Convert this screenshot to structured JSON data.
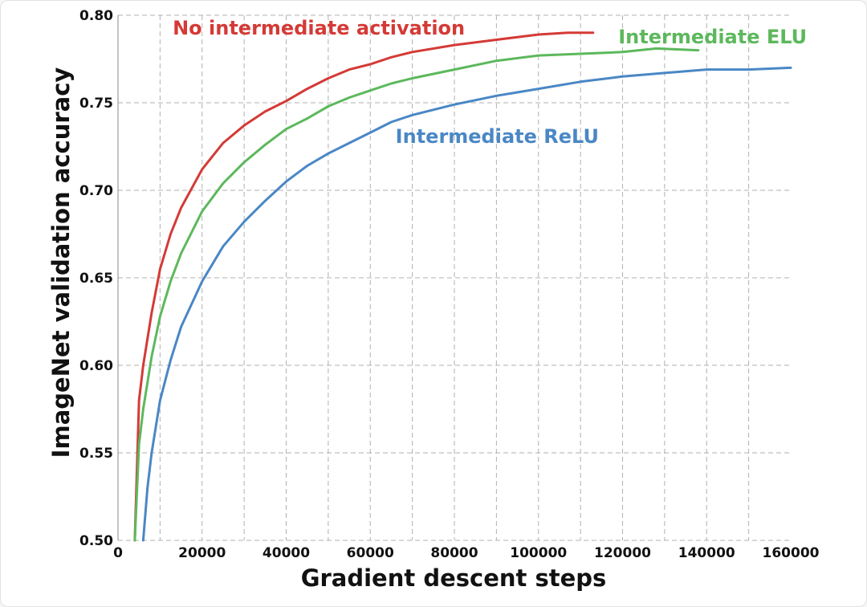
{
  "chart_data": {
    "type": "line",
    "title": "",
    "xlabel": "Gradient descent steps",
    "ylabel": "ImageNet validation accuracy",
    "xlim": [
      0,
      160000
    ],
    "ylim": [
      0.5,
      0.8
    ],
    "xticks": [
      0,
      20000,
      40000,
      60000,
      80000,
      100000,
      120000,
      140000,
      160000
    ],
    "xtick_labels": [
      "0",
      "20000",
      "40000",
      "60000",
      "80000",
      "100000",
      "120000",
      "140000",
      "160000"
    ],
    "yticks": [
      0.5,
      0.55,
      0.6,
      0.65,
      0.7,
      0.75,
      0.8
    ],
    "ytick_labels": [
      "0.50",
      "0.55",
      "0.60",
      "0.65",
      "0.70",
      "0.75",
      "0.80"
    ],
    "grid": true,
    "legend": "inline labels",
    "series": [
      {
        "name": "No intermediate activation",
        "color": "#d43a36",
        "label_anchor": [
          13000,
          0.789
        ],
        "points": [
          [
            4000,
            0.5
          ],
          [
            5000,
            0.58
          ],
          [
            6000,
            0.6
          ],
          [
            8000,
            0.63
          ],
          [
            10000,
            0.655
          ],
          [
            12500,
            0.675
          ],
          [
            15000,
            0.69
          ],
          [
            20000,
            0.712
          ],
          [
            25000,
            0.727
          ],
          [
            30000,
            0.737
          ],
          [
            35000,
            0.745
          ],
          [
            40000,
            0.751
          ],
          [
            45000,
            0.758
          ],
          [
            50000,
            0.764
          ],
          [
            55000,
            0.769
          ],
          [
            60000,
            0.772
          ],
          [
            65000,
            0.776
          ],
          [
            70000,
            0.779
          ],
          [
            80000,
            0.783
          ],
          [
            90000,
            0.786
          ],
          [
            100000,
            0.789
          ],
          [
            107000,
            0.79
          ],
          [
            113000,
            0.79
          ]
        ]
      },
      {
        "name": "Intermediate ELU",
        "color": "#5cb85c",
        "label_anchor": [
          119000,
          0.784
        ],
        "points": [
          [
            4000,
            0.5
          ],
          [
            5000,
            0.555
          ],
          [
            6000,
            0.575
          ],
          [
            8000,
            0.605
          ],
          [
            10000,
            0.628
          ],
          [
            12500,
            0.648
          ],
          [
            15000,
            0.664
          ],
          [
            20000,
            0.688
          ],
          [
            25000,
            0.704
          ],
          [
            30000,
            0.716
          ],
          [
            35000,
            0.726
          ],
          [
            40000,
            0.735
          ],
          [
            45000,
            0.741
          ],
          [
            50000,
            0.748
          ],
          [
            55000,
            0.753
          ],
          [
            60000,
            0.757
          ],
          [
            65000,
            0.761
          ],
          [
            70000,
            0.764
          ],
          [
            80000,
            0.769
          ],
          [
            90000,
            0.774
          ],
          [
            100000,
            0.777
          ],
          [
            110000,
            0.778
          ],
          [
            120000,
            0.779
          ],
          [
            128000,
            0.781
          ],
          [
            138000,
            0.78
          ]
        ]
      },
      {
        "name": "Intermediate ReLU",
        "color": "#4a87c5",
        "label_anchor": [
          66000,
          0.727
        ],
        "points": [
          [
            6000,
            0.5
          ],
          [
            7000,
            0.53
          ],
          [
            8000,
            0.55
          ],
          [
            10000,
            0.58
          ],
          [
            12500,
            0.603
          ],
          [
            15000,
            0.622
          ],
          [
            20000,
            0.648
          ],
          [
            25000,
            0.668
          ],
          [
            30000,
            0.682
          ],
          [
            35000,
            0.694
          ],
          [
            40000,
            0.705
          ],
          [
            45000,
            0.714
          ],
          [
            50000,
            0.721
          ],
          [
            55000,
            0.727
          ],
          [
            60000,
            0.733
          ],
          [
            65000,
            0.739
          ],
          [
            70000,
            0.743
          ],
          [
            80000,
            0.749
          ],
          [
            90000,
            0.754
          ],
          [
            100000,
            0.758
          ],
          [
            110000,
            0.762
          ],
          [
            120000,
            0.765
          ],
          [
            130000,
            0.767
          ],
          [
            140000,
            0.769
          ],
          [
            150000,
            0.769
          ],
          [
            160000,
            0.77
          ]
        ]
      }
    ]
  }
}
